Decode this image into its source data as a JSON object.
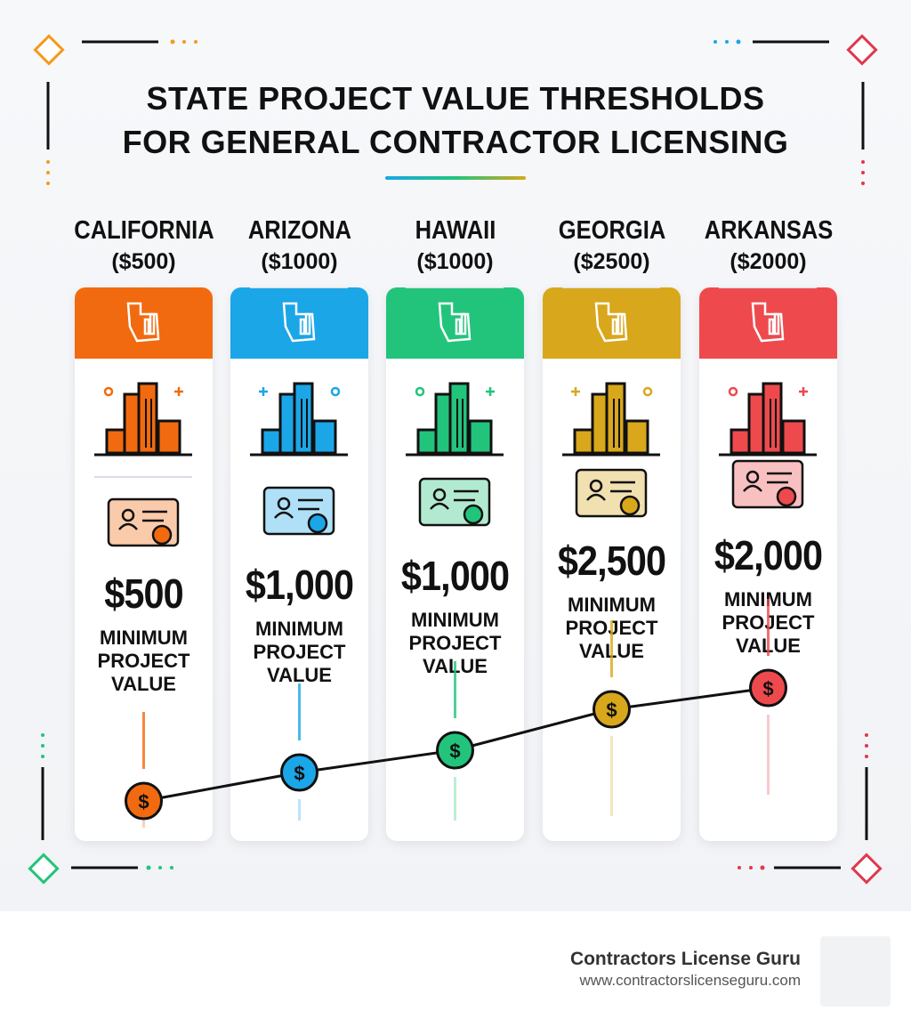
{
  "header": {
    "title_lines": [
      "STATE PROJECT VALUE THRESHOLDS",
      "FOR GENERAL CONTRACTOR LICENSING"
    ]
  },
  "coin_symbol": "$",
  "states": [
    {
      "name": "CALIFORNIA",
      "threshold_label": "($500)",
      "value": "$500",
      "caption": "MINIMUM PROJECT VALUE",
      "color": "#f26a0f"
    },
    {
      "name": "ARIZONA",
      "threshold_label": "($1000)",
      "value": "$1,000",
      "caption": "MINIMUM PROJECT VALUE",
      "color": "#1ba6e8"
    },
    {
      "name": "HAWAII",
      "threshold_label": "($1000)",
      "value": "$1,000",
      "caption": "MINIMUM PROJECT VALUE",
      "color": "#22c47c"
    },
    {
      "name": "GEORGIA",
      "threshold_label": "($2500)",
      "value": "$2,500",
      "caption": "MINIMUM PROJECT VALUE",
      "color": "#d8a71c"
    },
    {
      "name": "ARKANSAS",
      "threshold_label": "($2000)",
      "value": "$2,000",
      "caption": "MINIMUM PROJECT VALUE",
      "color": "#ee4a4e"
    }
  ],
  "footer": {
    "brand": "Contractors License Guru",
    "url": "www.contractorslicenseguru.com"
  }
}
